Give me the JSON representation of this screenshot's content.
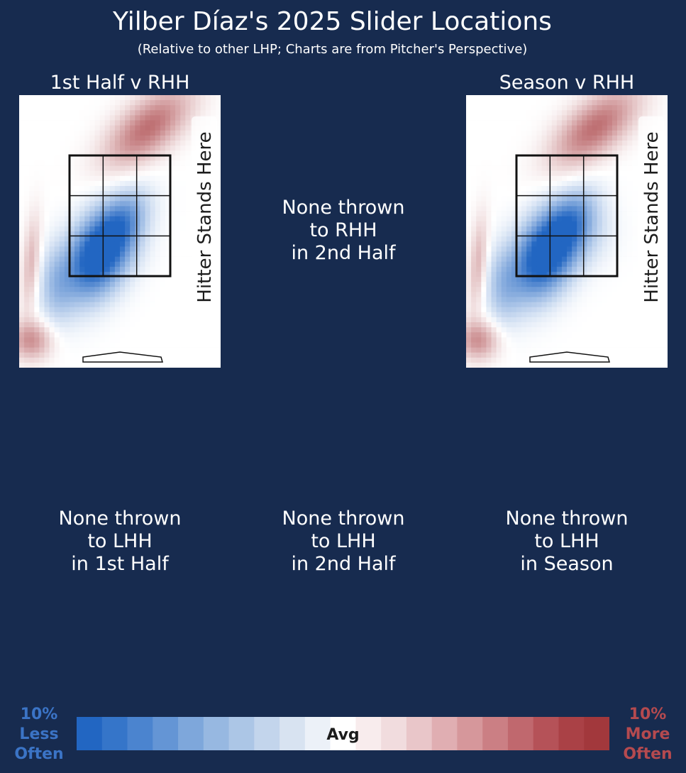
{
  "title": "Yilber Díaz's 2025 Slider Locations",
  "subtitle": "(Relative to other LHP; Charts are from Pitcher's Perspective)",
  "panels": {
    "first_half_rhh": {
      "title": "1st Half v RHH",
      "hitter_label": "Hitter Stands Here"
    },
    "season_rhh": {
      "title": "Season v RHH",
      "hitter_label": "Hitter Stands Here"
    },
    "second_half_rhh": {
      "lines": [
        "None thrown",
        "to RHH",
        "in 2nd Half"
      ]
    },
    "first_half_lhh": {
      "lines": [
        "None thrown",
        "to LHH",
        "in 1st Half"
      ]
    },
    "second_half_lhh": {
      "lines": [
        "None thrown",
        "to LHH",
        "in 2nd Half"
      ]
    },
    "season_lhh": {
      "lines": [
        "None thrown",
        "to LHH",
        "in Season"
      ]
    }
  },
  "legend": {
    "left": [
      "10%",
      "Less",
      "Often"
    ],
    "right": [
      "10%",
      "More",
      "Often"
    ],
    "center": "Avg",
    "left_color": "#3b74c6",
    "right_color": "#b54a4f",
    "colors": [
      "#2266c2",
      "#3575c9",
      "#4b84cf",
      "#6495d5",
      "#7ea7db",
      "#97b8e1",
      "#acc6e6",
      "#c3d5ec",
      "#d8e3f1",
      "#ecf1f8",
      "#ffffff",
      "#f8eced",
      "#f1dcde",
      "#e9c6c9",
      "#e0aeb2",
      "#d6979b",
      "#cb7f84",
      "#c0686e",
      "#b55258",
      "#aa4146",
      "#a2383c"
    ]
  },
  "chart_data": [
    {
      "type": "heatmap",
      "title": "1st Half v RHH",
      "description_of_values": "relative frequency vs. other LHP, -10% (less often, blue) to +10% (more often, red)",
      "regions": [
        {
          "zone": "up-and-away (top right, above zone)",
          "value": 7
        },
        {
          "zone": "middle-low of zone, extending below-left",
          "value": -10
        },
        {
          "zone": "far left edge (glove side), low",
          "value": 5
        },
        {
          "zone": "remaining area",
          "value": 0
        }
      ]
    },
    {
      "type": "heatmap",
      "title": "Season v RHH",
      "description_of_values": "relative frequency vs. other LHP, -10% (less often, blue) to +10% (more often, red)",
      "regions": [
        {
          "zone": "up-and-away (top right, above zone)",
          "value": 7
        },
        {
          "zone": "middle-low of zone, extending below-left",
          "value": -10
        },
        {
          "zone": "far left edge (glove side), low",
          "value": 5
        },
        {
          "zone": "remaining area",
          "value": 0
        }
      ]
    }
  ]
}
